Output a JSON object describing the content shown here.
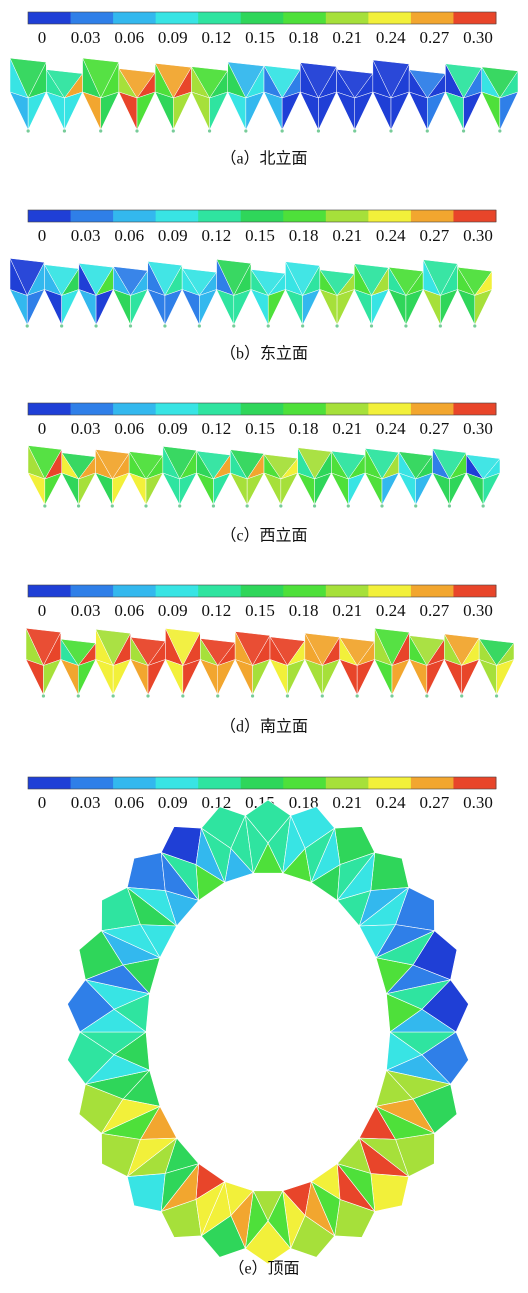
{
  "colorbar": {
    "colors": [
      "#1f3fd6",
      "#2f7fe8",
      "#33b8ee",
      "#38e4e4",
      "#2fe4a0",
      "#2fd65a",
      "#4ee03a",
      "#a6e03a",
      "#f2f03a",
      "#f2a62f",
      "#e8452a"
    ],
    "ticks": [
      0,
      0.03,
      0.06,
      0.09,
      0.12,
      0.15,
      0.18,
      0.21,
      0.24,
      0.27,
      {
        "value": 0.3,
        "label": "0.30"
      }
    ]
  },
  "panels": [
    {
      "caption": "（a）北立面"
    },
    {
      "caption": "（b）东立面"
    },
    {
      "caption": "（c）西立面"
    },
    {
      "caption": "（d）南立面"
    },
    {
      "caption": "（e）顶面"
    }
  ]
}
